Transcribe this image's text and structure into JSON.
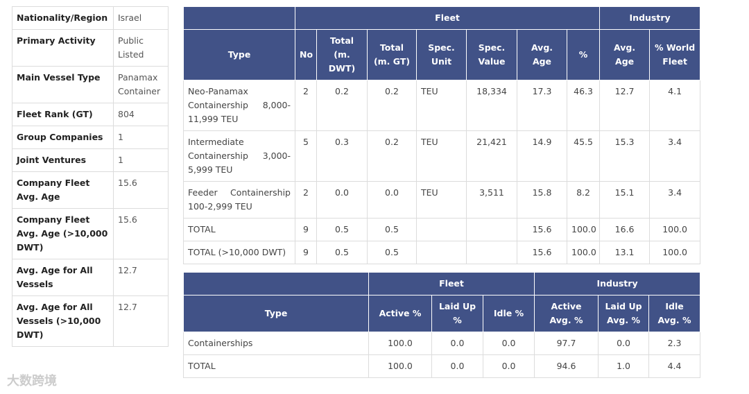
{
  "profile": {
    "rows": [
      [
        "Nationality/Region",
        "Israel"
      ],
      [
        "Primary Activity",
        "Public Listed"
      ],
      [
        "Main Vessel Type",
        "Panamax Container"
      ],
      [
        "Fleet Rank (GT)",
        "804"
      ],
      [
        "Group Companies",
        "1"
      ],
      [
        "Joint Ventures",
        "1"
      ],
      [
        "Company Fleet Avg. Age",
        "15.6"
      ],
      [
        "Company Fleet Avg. Age (>10,000 DWT)",
        "15.6"
      ],
      [
        "Avg. Age for All Vessels",
        "12.7"
      ],
      [
        "Avg. Age for All Vessels (>10,000 DWT)",
        "12.7"
      ]
    ]
  },
  "fleet_table": {
    "groups": [
      "Fleet",
      "Industry"
    ],
    "columns": [
      "Type",
      "No",
      "Total (m. DWT)",
      "Total (m. GT)",
      "Spec. Unit",
      "Spec. Value",
      "Avg. Age",
      "%",
      "Avg. Age",
      "% World Fleet"
    ],
    "rows": [
      [
        "Neo-Panamax Containership 8,000-11,999 TEU",
        "2",
        "0.2",
        "0.2",
        "TEU",
        "18,334",
        "17.3",
        "46.3",
        "12.7",
        "4.1"
      ],
      [
        "Intermediate Containership 3,000-5,999 TEU",
        "5",
        "0.3",
        "0.2",
        "TEU",
        "21,421",
        "14.9",
        "45.5",
        "15.3",
        "3.4"
      ],
      [
        "Feeder Containership 100-2,999 TEU",
        "2",
        "0.0",
        "0.0",
        "TEU",
        "3,511",
        "15.8",
        "8.2",
        "15.1",
        "3.4"
      ],
      [
        "TOTAL",
        "9",
        "0.5",
        "0.5",
        "",
        "",
        "15.6",
        "100.0",
        "16.6",
        "100.0"
      ],
      [
        "TOTAL (>10,000 DWT)",
        "9",
        "0.5",
        "0.5",
        "",
        "",
        "15.6",
        "100.0",
        "13.1",
        "100.0"
      ]
    ]
  },
  "status_table": {
    "groups": [
      "Fleet",
      "Industry"
    ],
    "columns": [
      "Type",
      "Active %",
      "Laid Up %",
      "Idle %",
      "Active Avg. %",
      "Laid Up Avg. %",
      "Idle Avg. %"
    ],
    "rows": [
      [
        "Containerships",
        "100.0",
        "0.0",
        "0.0",
        "97.7",
        "0.0",
        "2.3"
      ],
      [
        "TOTAL",
        "100.0",
        "0.0",
        "0.0",
        "94.6",
        "1.0",
        "4.4"
      ]
    ]
  },
  "watermark": "大数跨境"
}
